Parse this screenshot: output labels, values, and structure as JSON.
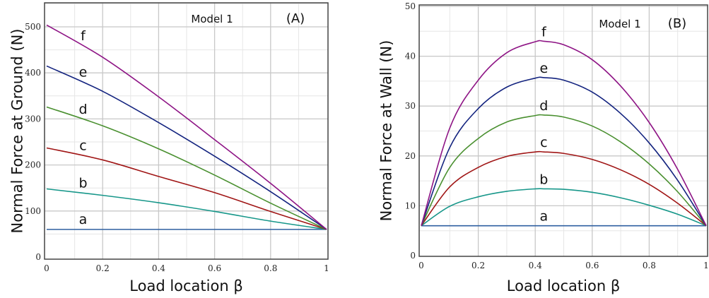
{
  "chart_data": [
    {
      "type": "line",
      "panel_label": "(A)",
      "annotation": "Model 1",
      "xlabel": "Load location β",
      "ylabel": "Normal Force at Ground (N)",
      "xlim": [
        0,
        1
      ],
      "ylim": [
        0,
        550
      ],
      "xticks": [
        "0",
        "0.2",
        "0.4",
        "0.6",
        "0.8",
        "1"
      ],
      "yticks": [
        "0",
        "100",
        "200",
        "300",
        "400",
        "500"
      ],
      "grid": true,
      "x": [
        0,
        0.2,
        0.4,
        0.6,
        0.8,
        1
      ],
      "series": [
        {
          "name": "a",
          "color": "#2f5fa0",
          "values": [
            60,
            60,
            60,
            60,
            60,
            60
          ]
        },
        {
          "name": "b",
          "color": "#17978a",
          "values": [
            148,
            134,
            118,
            99,
            78,
            60
          ]
        },
        {
          "name": "c",
          "color": "#a01515",
          "values": [
            237,
            211,
            175,
            140,
            99,
            60
          ]
        },
        {
          "name": "d",
          "color": "#4a9030",
          "values": [
            326,
            285,
            235,
            178,
            117,
            60
          ]
        },
        {
          "name": "e",
          "color": "#13237f",
          "values": [
            415,
            360,
            292,
            219,
            142,
            60
          ]
        },
        {
          "name": "f",
          "color": "#8e1485",
          "values": [
            504,
            434,
            348,
            255,
            160,
            60
          ]
        }
      ]
    },
    {
      "type": "line",
      "panel_label": "(B)",
      "annotation": "Model 1",
      "xlabel": "Load location β",
      "ylabel": "Normal Force at Wall (N)",
      "xlim": [
        0,
        1
      ],
      "ylim": [
        0,
        50
      ],
      "xticks": [
        "0",
        "0.2",
        "0.4",
        "0.6",
        "0.8",
        "1"
      ],
      "yticks": [
        "0",
        "10",
        "20",
        "30",
        "40",
        "50"
      ],
      "grid": true,
      "x": [
        0,
        0.1,
        0.2,
        0.3,
        0.4,
        0.43,
        0.5,
        0.6,
        0.7,
        0.8,
        0.9,
        1
      ],
      "series": [
        {
          "name": "a",
          "color": "#2f5fa0",
          "values": [
            6,
            6,
            6,
            6,
            6,
            6,
            6,
            6,
            6,
            6,
            6,
            6
          ]
        },
        {
          "name": "b",
          "color": "#17978a",
          "values": [
            6,
            9.9,
            11.8,
            12.9,
            13.4,
            13.4,
            13.3,
            12.7,
            11.6,
            10.1,
            8.3,
            6
          ]
        },
        {
          "name": "c",
          "color": "#a01515",
          "values": [
            6,
            13.8,
            17.7,
            19.9,
            20.8,
            20.8,
            20.5,
            19.3,
            17.2,
            14.3,
            10.5,
            6
          ]
        },
        {
          "name": "d",
          "color": "#4a9030",
          "values": [
            6,
            17.7,
            23.5,
            26.8,
            28.1,
            28.2,
            27.8,
            26.0,
            22.8,
            18.4,
            12.8,
            6
          ]
        },
        {
          "name": "e",
          "color": "#13237f",
          "values": [
            6,
            21.7,
            29.5,
            33.8,
            35.6,
            35.7,
            35.2,
            32.8,
            28.5,
            22.6,
            15.1,
            6
          ]
        },
        {
          "name": "f",
          "color": "#8e1485",
          "values": [
            6,
            25.6,
            35.2,
            40.7,
            42.9,
            43.0,
            42.3,
            39.3,
            34.0,
            26.7,
            17.3,
            6
          ]
        }
      ]
    }
  ]
}
